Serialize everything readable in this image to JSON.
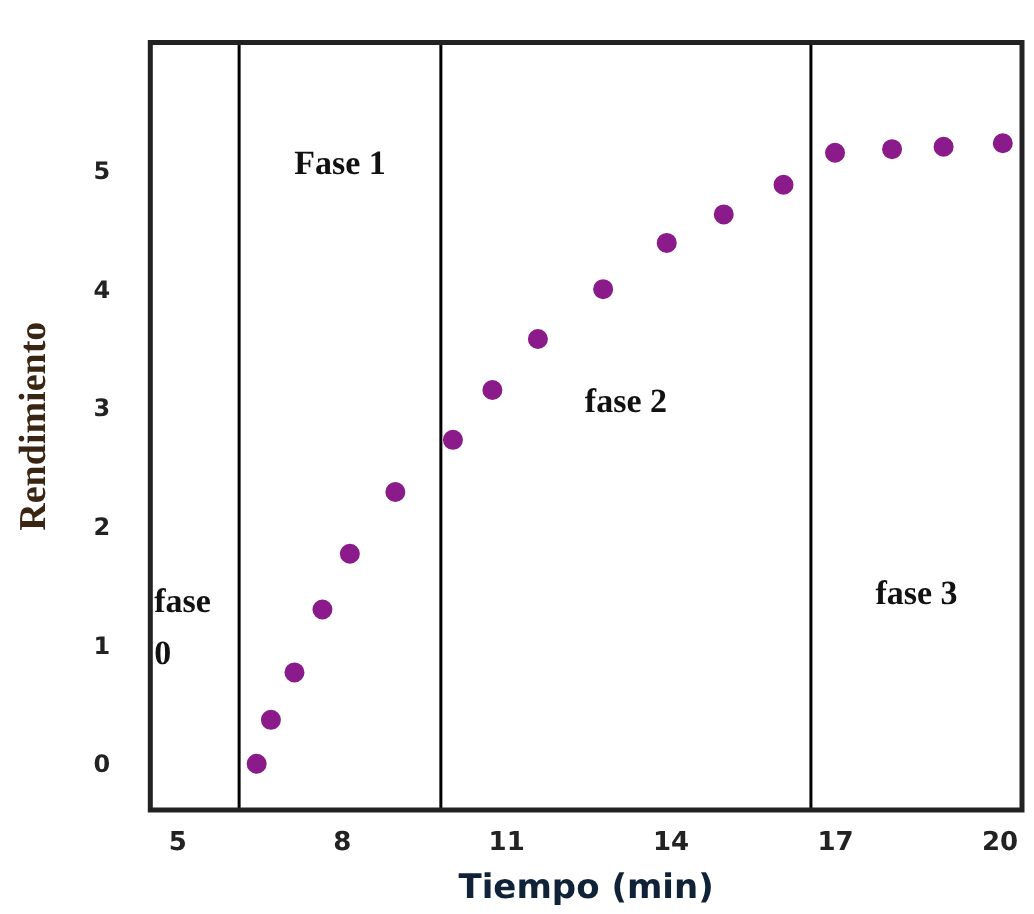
{
  "chart_data": {
    "type": "scatter",
    "xlabel": "Tiempo (min)",
    "ylabel": "Rendimiento",
    "x": [
      6.44,
      6.7,
      7.13,
      7.64,
      8.14,
      8.97,
      10.02,
      10.74,
      11.57,
      12.76,
      13.92,
      14.96,
      16.05,
      16.99,
      18.03,
      18.97,
      20.05
    ],
    "series": [
      {
        "color": "#8b1a8b",
        "values": [
          0.02,
          0.39,
          0.79,
          1.32,
          1.79,
          2.31,
          2.75,
          3.17,
          3.6,
          4.02,
          4.41,
          4.65,
          4.9,
          5.17,
          5.2,
          5.22,
          5.25
        ]
      }
    ],
    "xlim": [
      4.5,
      20.4
    ],
    "xticks": [
      5,
      8,
      11,
      14,
      17,
      20
    ],
    "ylim": [
      -0.37,
      6.1
    ],
    "yticks": [
      0,
      1,
      2,
      3,
      4,
      5
    ],
    "ref_lines": [
      {
        "axis": "x",
        "value": 6.12,
        "color": "#000000"
      },
      {
        "axis": "x",
        "value": 9.8,
        "color": "#000000"
      },
      {
        "axis": "x",
        "value": 16.55,
        "color": "#000000"
      }
    ],
    "annotations": [
      "fase 0",
      "Fase 1",
      "fase 2",
      "fase 3"
    ],
    "marker": "circle",
    "grid": false,
    "legend": false
  }
}
